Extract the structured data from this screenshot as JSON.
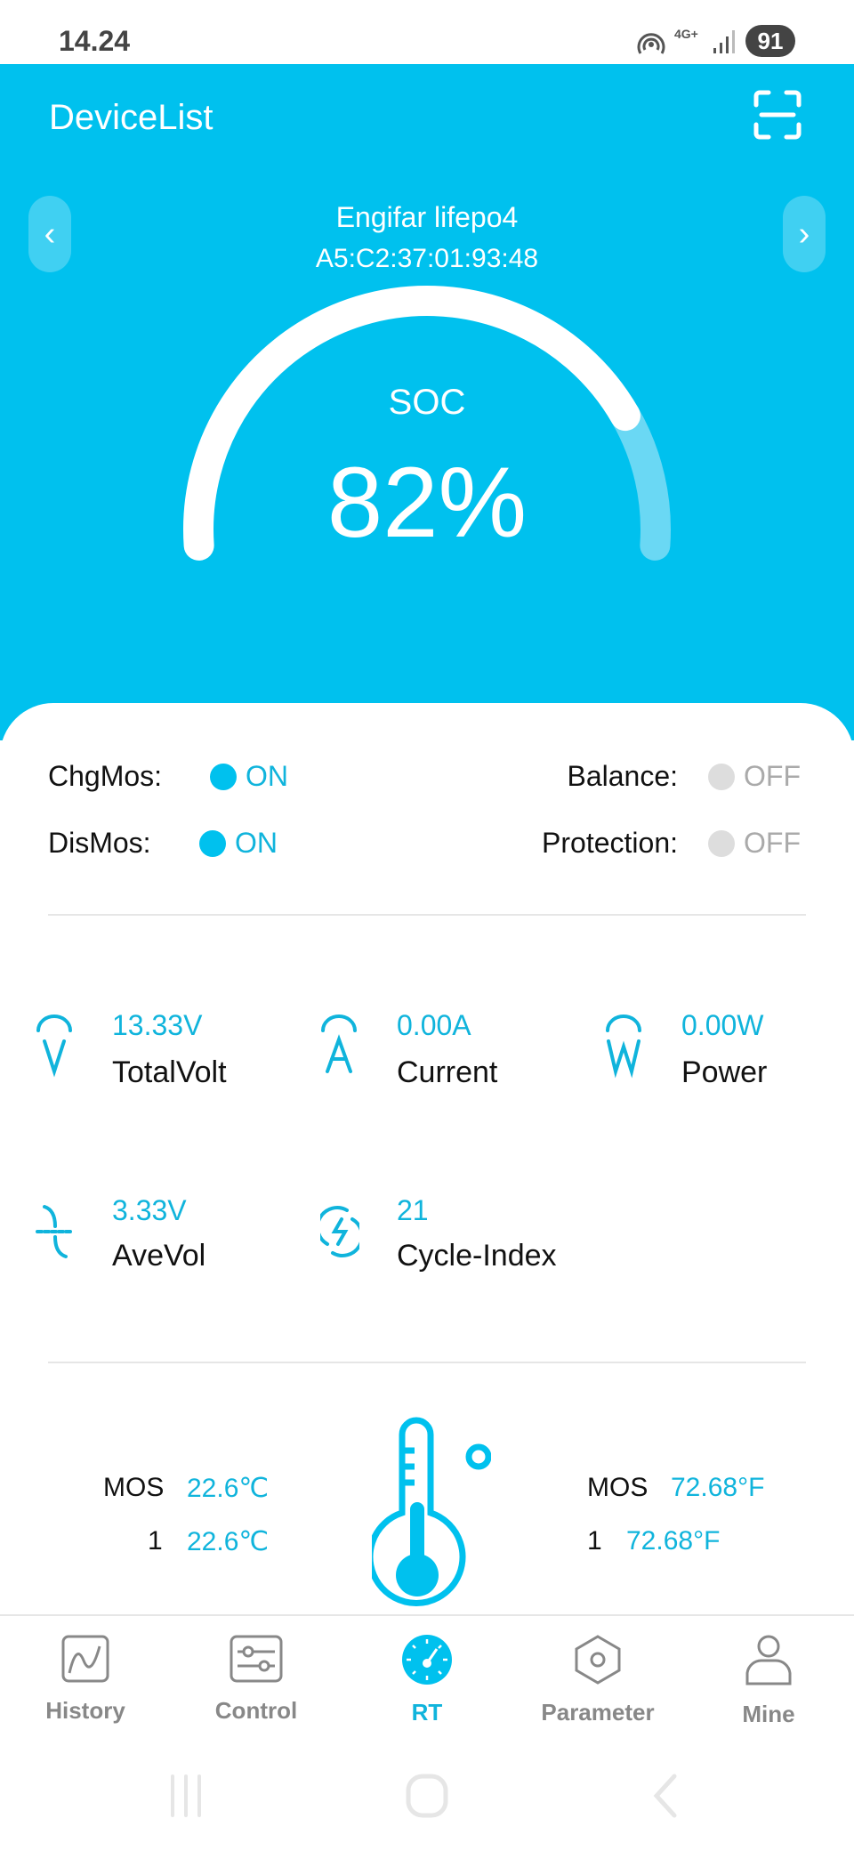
{
  "status_bar": {
    "time": "14.24",
    "network": "4G+",
    "battery": "91"
  },
  "header": {
    "title": "DeviceList",
    "device_name": "Engifar lifepo4",
    "mac": "A5:C2:37:01:93:48"
  },
  "gauge": {
    "label": "SOC",
    "value_text": "82%",
    "fraction": 0.82,
    "color_fill": "#ffffff",
    "color_rest": "#6ad8f4"
  },
  "switches": [
    {
      "label": "ChgMos:",
      "state": "ON",
      "on": true
    },
    {
      "label": "Balance:",
      "state": "OFF",
      "on": false
    },
    {
      "label": "DisMos:",
      "state": "ON",
      "on": true
    },
    {
      "label": "Protection:",
      "state": "OFF",
      "on": false
    }
  ],
  "metrics": [
    {
      "value": "13.33V",
      "label": "TotalVolt",
      "icon": "volt-icon"
    },
    {
      "value": "0.00A",
      "label": "Current",
      "icon": "ampere-icon"
    },
    {
      "value": "0.00W",
      "label": "Power",
      "icon": "watt-icon"
    },
    {
      "value": "3.33V",
      "label": "AveVol",
      "icon": "average-voltage-icon"
    },
    {
      "value": "21",
      "label": "Cycle-Index",
      "icon": "cycle-icon"
    }
  ],
  "temps_c": [
    {
      "name": "MOS",
      "value": "22.6℃"
    },
    {
      "name": "1",
      "value": "22.6℃"
    }
  ],
  "temps_f": [
    {
      "name": "MOS",
      "value": "72.68°F"
    },
    {
      "name": "1",
      "value": "72.68°F"
    }
  ],
  "nav": [
    {
      "label": "History"
    },
    {
      "label": "Control"
    },
    {
      "label": "RT",
      "active": true
    },
    {
      "label": "Parameter"
    },
    {
      "label": "Mine"
    }
  ],
  "colors": {
    "accent": "#00c1ee",
    "text_accent": "#10b4dc",
    "off": "#dddddd"
  }
}
